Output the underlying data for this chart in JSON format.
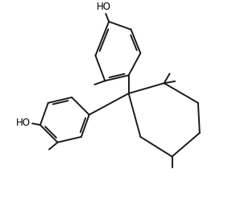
{
  "background_color": "#ffffff",
  "line_color": "#1a1a1a",
  "line_width": 1.4,
  "text_color": "#000000",
  "font_size": 8.5,
  "ho_label_1": "HO",
  "ho_label_2": "HO",
  "figsize": [
    2.88,
    2.62
  ],
  "dpi": 100
}
